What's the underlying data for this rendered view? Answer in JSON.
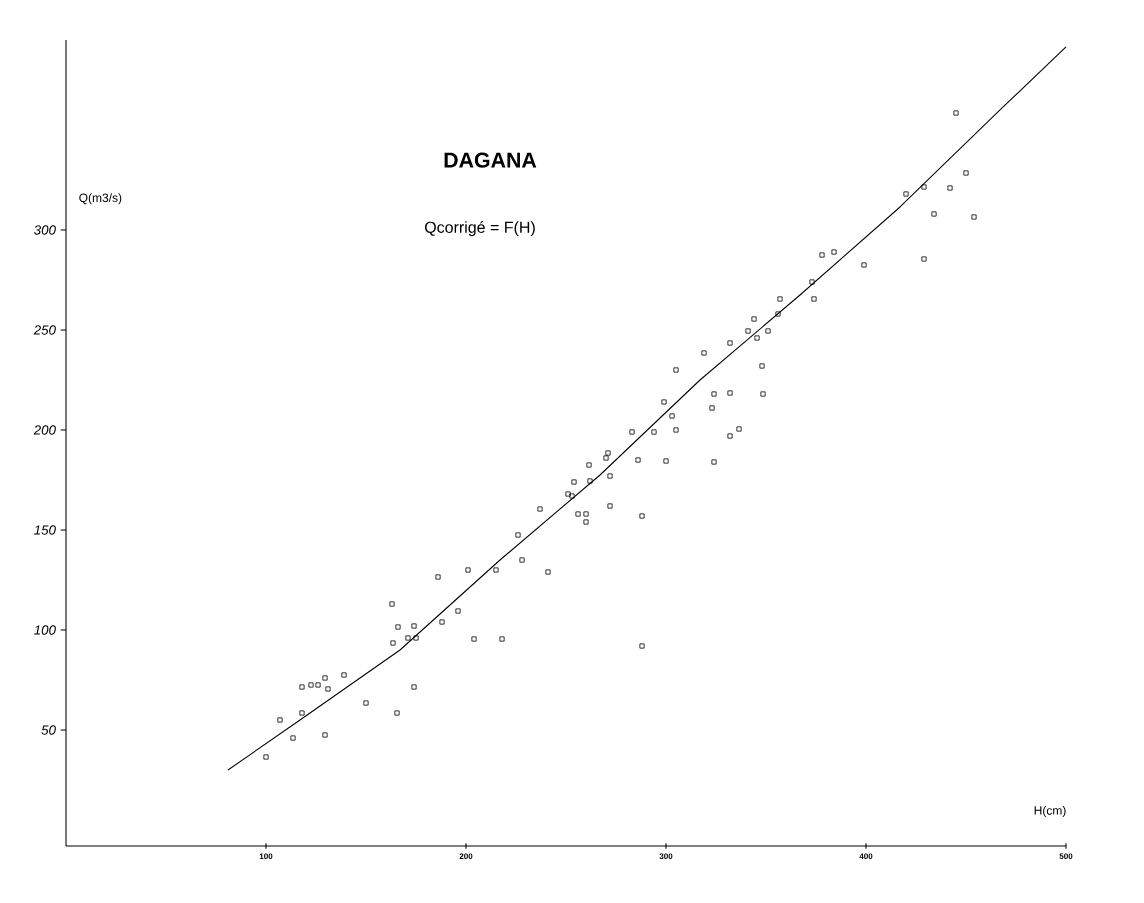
{
  "chart_data": {
    "type": "scatter",
    "title": "DAGANA",
    "subtitle": "Qcorrigé = F(H)",
    "xlabel": "H(cm)",
    "ylabel": "Q(m3/s)",
    "xlim": [
      0,
      500
    ],
    "ylim": [
      -8,
      395
    ],
    "xticks": [
      100,
      200,
      300,
      400,
      500
    ],
    "yticks": [
      50,
      100,
      150,
      200,
      250,
      300
    ],
    "grid": false,
    "series": [
      {
        "marker": "square",
        "color": "#000000",
        "x": [
          100,
          107,
          113.5,
          118,
          118,
          122.5,
          126,
          129.5,
          131,
          129.5,
          139,
          150,
          163,
          163.5,
          166,
          165.5,
          171,
          174,
          175,
          174,
          186,
          188,
          196,
          201,
          204,
          215,
          218,
          226,
          228,
          237,
          241,
          251,
          253,
          254,
          256,
          260,
          260,
          261.5,
          262,
          270,
          271,
          272,
          272,
          283,
          286,
          288,
          294,
          300,
          299,
          303,
          305,
          305,
          319,
          323,
          324,
          324,
          332,
          332,
          332,
          336.5,
          341,
          344,
          345.5,
          348,
          348.5,
          351,
          356,
          357,
          373,
          374,
          378,
          384,
          399,
          420,
          429,
          429,
          434,
          442,
          445,
          450,
          454,
          288
        ],
        "values": [
          36.5,
          55,
          46,
          58.5,
          71.5,
          72.5,
          72.5,
          76,
          70.5,
          47.5,
          77.5,
          63.5,
          113,
          93.5,
          101.5,
          58.5,
          96,
          102,
          96,
          71.5,
          126.5,
          104,
          109.5,
          130,
          95.5,
          130,
          95.5,
          147.5,
          135,
          160.5,
          129,
          168,
          167,
          174,
          158,
          158,
          154,
          182.5,
          174.5,
          186,
          188.5,
          177,
          162,
          199,
          185,
          157,
          199,
          184.5,
          214,
          207,
          200,
          230,
          238.5,
          211,
          218,
          184,
          243.5,
          197,
          218.5,
          200.5,
          249.5,
          255.5,
          246,
          232,
          218,
          249.5,
          258,
          265.5,
          274,
          265.5,
          287.5,
          289,
          282.5,
          318,
          285.5,
          321.5,
          308,
          321,
          358.5,
          328.5,
          306.5,
          92
        ]
      },
      {
        "type": "line",
        "marker": "none",
        "line_style": "solid",
        "color": "#000000",
        "x": [
          81,
          117,
          167,
          217,
          267,
          317,
          367,
          417,
          467,
          500
        ],
        "values": [
          30,
          55,
          90,
          135,
          177.5,
          225,
          267.5,
          311.5,
          360,
          391.5
        ]
      }
    ]
  }
}
